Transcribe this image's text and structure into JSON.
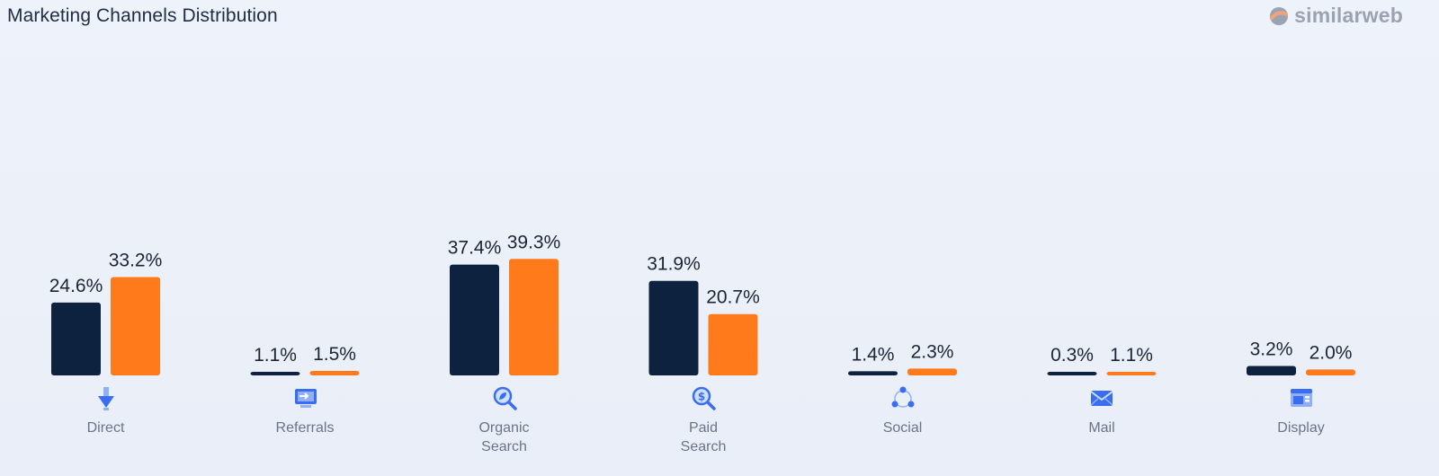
{
  "title": "Marketing Channels Distribution",
  "brand": {
    "name": "similarweb"
  },
  "colors": {
    "series_a": "#0d223f",
    "series_b": "#ff7a1a",
    "value_text": "#1c2536",
    "icon": "#3b6df0"
  },
  "chart_data": {
    "type": "bar",
    "title": "Marketing Channels Distribution",
    "categories": [
      {
        "label": "Direct",
        "lines": [
          "Direct"
        ],
        "icon": "arrow-down-icon"
      },
      {
        "label": "Referrals",
        "lines": [
          "Referrals"
        ],
        "icon": "referral-screen-icon"
      },
      {
        "label": "Organic Search",
        "lines": [
          "Organic",
          "Search"
        ],
        "icon": "organic-search-icon"
      },
      {
        "label": "Paid Search",
        "lines": [
          "Paid",
          "Search"
        ],
        "icon": "paid-search-icon"
      },
      {
        "label": "Social",
        "lines": [
          "Social"
        ],
        "icon": "social-network-icon"
      },
      {
        "label": "Mail",
        "lines": [
          "Mail"
        ],
        "icon": "mail-icon"
      },
      {
        "label": "Display",
        "lines": [
          "Display"
        ],
        "icon": "display-ad-icon"
      }
    ],
    "series": [
      {
        "values": [
          24.6,
          1.1,
          37.4,
          31.9,
          1.4,
          0.3,
          3.2
        ],
        "labels": [
          "24.6%",
          "1.1%",
          "37.4%",
          "31.9%",
          "1.4%",
          "0.3%",
          "3.2%"
        ],
        "color": "#0d223f"
      },
      {
        "values": [
          33.2,
          1.5,
          39.3,
          20.7,
          2.3,
          1.1,
          2.0
        ],
        "labels": [
          "33.2%",
          "1.5%",
          "39.3%",
          "20.7%",
          "2.3%",
          "1.1%",
          "2.0%"
        ],
        "color": "#ff7a1a"
      }
    ],
    "ylim": [
      0,
      100
    ],
    "grid": false,
    "legend": "none"
  }
}
